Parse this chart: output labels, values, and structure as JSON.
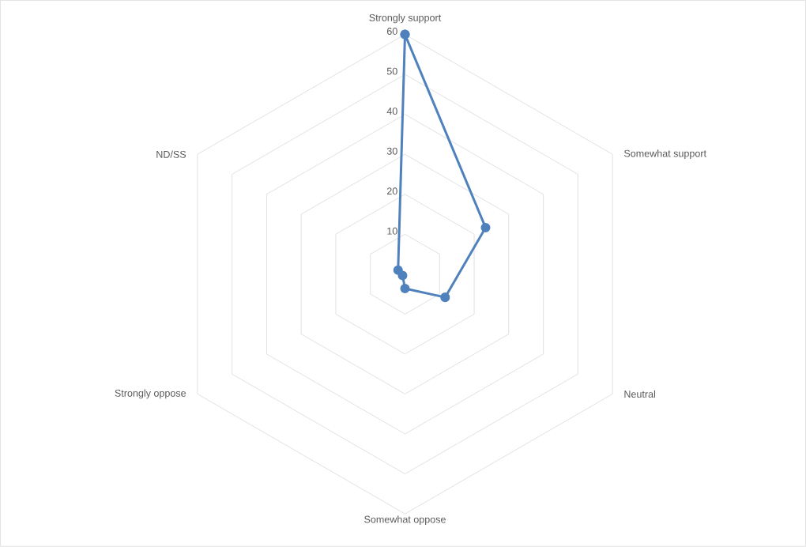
{
  "chart_data": {
    "type": "radar",
    "categories": [
      "Strongly support",
      "Somewhat support",
      "Neutral",
      "Somewhat oppose",
      "Strongly oppose",
      "ND/SS"
    ],
    "series": [
      {
        "color": "#4f81bd",
        "values": [
          60,
          23.3,
          11.6,
          3.6,
          0.7,
          2
        ]
      }
    ],
    "ylim": [
      0,
      60
    ],
    "yticks": [
      10,
      20,
      30,
      40,
      50,
      60
    ],
    "grid": true,
    "marker": "circle",
    "line_style": "solid"
  }
}
